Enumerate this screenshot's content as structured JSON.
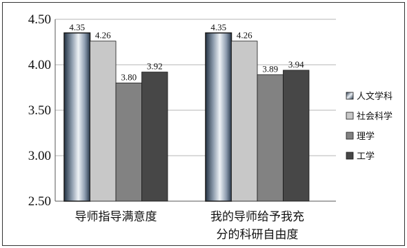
{
  "chart_data": {
    "type": "bar",
    "categories": [
      [
        "导师指导满意度"
      ],
      [
        "我的导师给予我充",
        "分的科研自由度"
      ]
    ],
    "series": [
      {
        "name": "人文学科",
        "values": [
          4.35,
          4.35
        ],
        "labels": [
          "4.35",
          "4.35"
        ],
        "fill": "gradient",
        "color": "#5f7085"
      },
      {
        "name": "社会科学",
        "values": [
          4.26,
          4.26
        ],
        "labels": [
          "4.26",
          "4.26"
        ],
        "color": "#c8c8c8"
      },
      {
        "name": "理学",
        "values": [
          3.8,
          3.89
        ],
        "labels": [
          "3.80",
          "3.89"
        ],
        "color": "#828282"
      },
      {
        "name": "工学",
        "values": [
          3.92,
          3.94
        ],
        "labels": [
          "3.92",
          "3.94"
        ],
        "color": "#474747"
      }
    ],
    "ylim": [
      2.5,
      4.5
    ],
    "yticks": [
      "2.50",
      "3.00",
      "3.50",
      "4.00",
      "4.50"
    ],
    "grid": true,
    "legend": "right"
  }
}
